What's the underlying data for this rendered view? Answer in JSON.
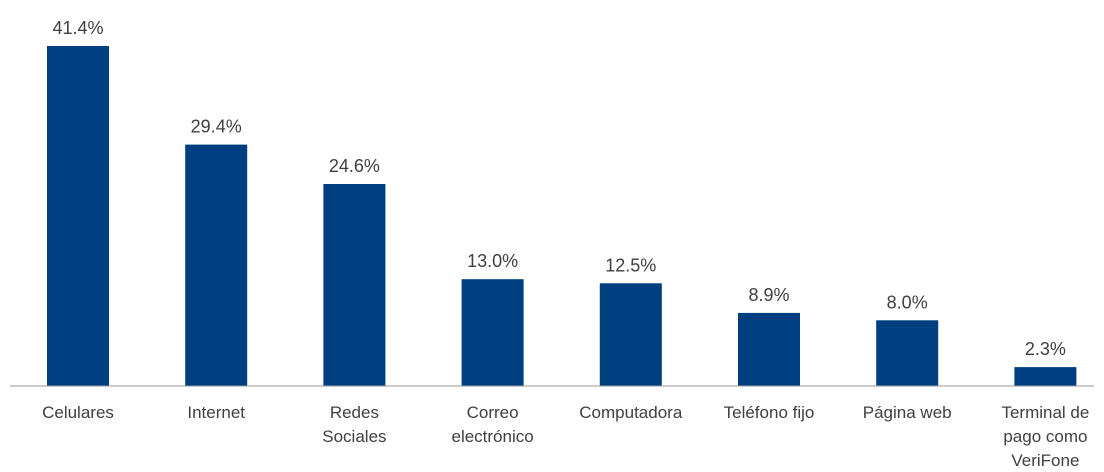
{
  "chart_data": {
    "type": "bar",
    "categories": [
      "Celulares",
      "Internet",
      "Redes Sociales",
      "Correo electrónico",
      "Computadora",
      "Teléfono fijo",
      "Página web",
      "Terminal de pago como VeriFone"
    ],
    "category_lines": [
      [
        "Celulares"
      ],
      [
        "Internet"
      ],
      [
        "Redes",
        "Sociales"
      ],
      [
        "Correo",
        "electrónico"
      ],
      [
        "Computadora"
      ],
      [
        "Teléfono fijo"
      ],
      [
        "Página web"
      ],
      [
        "Terminal de",
        "pago como",
        "VeriFone"
      ]
    ],
    "values": [
      41.4,
      29.4,
      24.6,
      13.0,
      12.5,
      8.9,
      8.0,
      2.3
    ],
    "value_labels": [
      "41.4%",
      "29.4%",
      "24.6%",
      "13.0%",
      "12.5%",
      "8.9%",
      "8.0%",
      "2.3%"
    ],
    "unit": "%",
    "ylim": [
      0,
      41.4
    ],
    "grid": false,
    "bar_color": "#003f7f",
    "axis_color": "#999999",
    "text_color": "#404040"
  }
}
